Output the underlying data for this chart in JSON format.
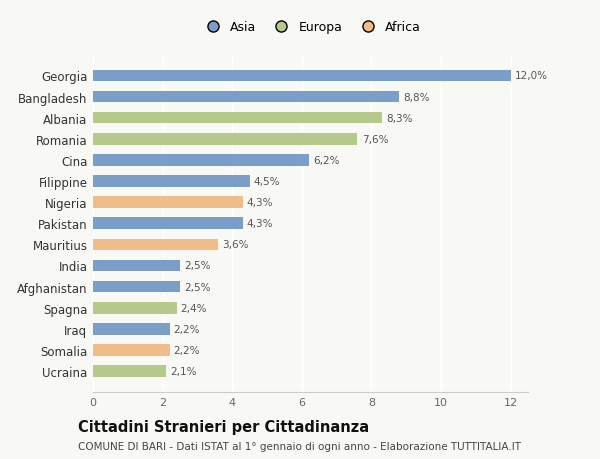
{
  "countries": [
    "Georgia",
    "Bangladesh",
    "Albania",
    "Romania",
    "Cina",
    "Filippine",
    "Nigeria",
    "Pakistan",
    "Mauritius",
    "India",
    "Afghanistan",
    "Spagna",
    "Iraq",
    "Somalia",
    "Ucraina"
  ],
  "values": [
    12.0,
    8.8,
    8.3,
    7.6,
    6.2,
    4.5,
    4.3,
    4.3,
    3.6,
    2.5,
    2.5,
    2.4,
    2.2,
    2.2,
    2.1
  ],
  "labels": [
    "12,0%",
    "8,8%",
    "8,3%",
    "7,6%",
    "6,2%",
    "4,5%",
    "4,3%",
    "4,3%",
    "3,6%",
    "2,5%",
    "2,5%",
    "2,4%",
    "2,2%",
    "2,2%",
    "2,1%"
  ],
  "continents": [
    "Asia",
    "Asia",
    "Europa",
    "Europa",
    "Asia",
    "Asia",
    "Africa",
    "Asia",
    "Africa",
    "Asia",
    "Asia",
    "Europa",
    "Asia",
    "Africa",
    "Europa"
  ],
  "colors": {
    "Asia": "#7b9ec9",
    "Europa": "#b5c98a",
    "Africa": "#f0bc8a"
  },
  "legend_labels": [
    "Asia",
    "Europa",
    "Africa"
  ],
  "legend_colors": [
    "#7b9ec9",
    "#b5c98a",
    "#f0bc8a"
  ],
  "xlim": [
    0,
    12.5
  ],
  "xticks": [
    0,
    2,
    4,
    6,
    8,
    10,
    12
  ],
  "title": "Cittadini Stranieri per Cittadinanza",
  "subtitle": "COMUNE DI BARI - Dati ISTAT al 1° gennaio di ogni anno - Elaborazione TUTTITALIA.IT",
  "background_color": "#f8f8f5",
  "bar_height": 0.55,
  "label_fontsize": 7.5,
  "ytick_fontsize": 8.5,
  "xtick_fontsize": 8.0,
  "title_fontsize": 10.5,
  "subtitle_fontsize": 7.5
}
